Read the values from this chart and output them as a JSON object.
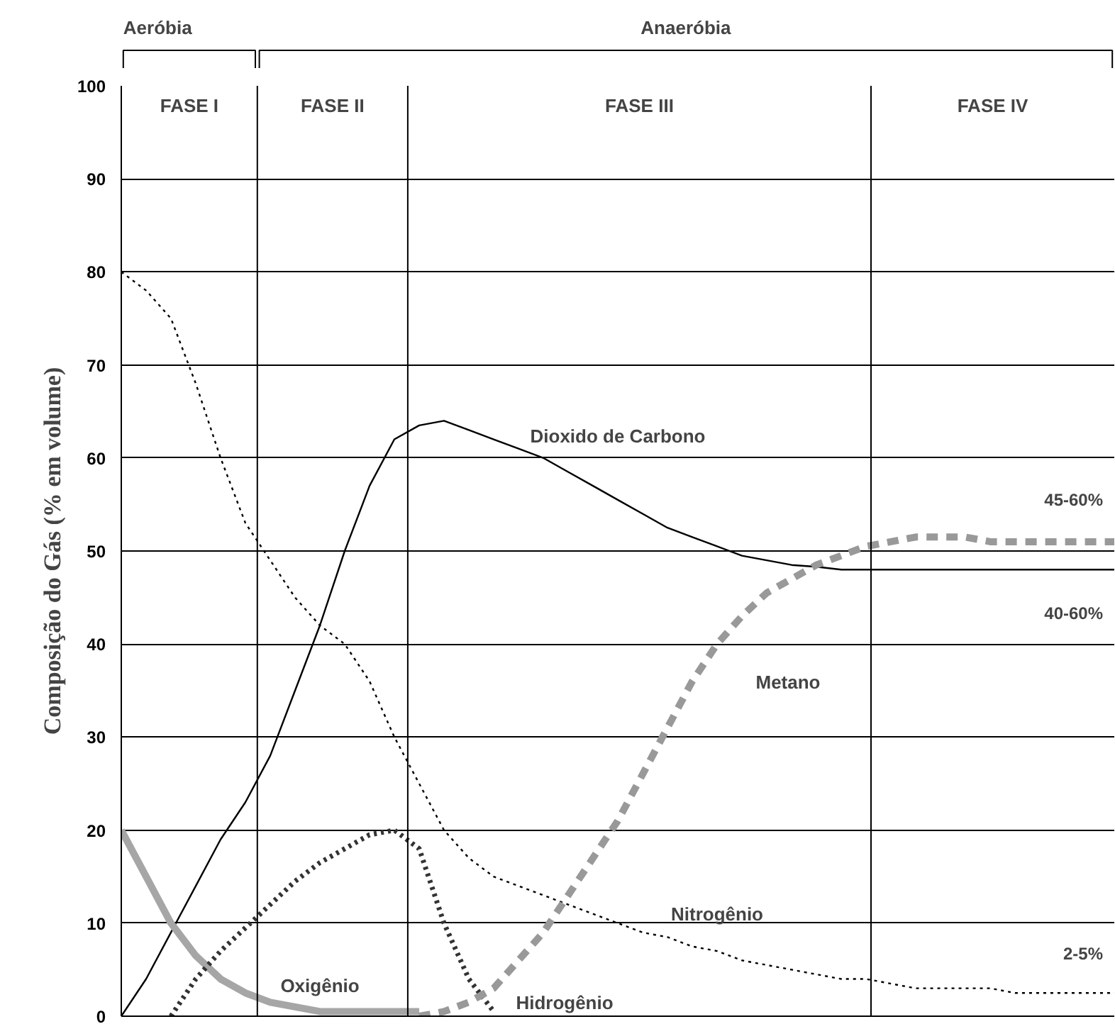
{
  "chart_data": {
    "type": "line",
    "ylabel": "Composição do Gás (% em volume)",
    "categories": [
      null,
      null,
      null,
      null,
      null,
      null,
      null,
      null,
      null,
      null,
      null,
      null,
      null,
      null,
      null,
      null,
      null,
      null,
      null,
      null,
      null,
      null,
      null,
      null,
      null,
      null,
      null,
      null,
      null,
      null,
      null,
      null,
      null,
      null,
      null,
      null,
      null,
      null,
      null,
      null,
      null
    ],
    "series": [
      {
        "name": "Nitrogênio",
        "color": "#000000",
        "line_style": "dotted",
        "values": [
          80,
          78,
          75,
          68,
          60,
          53,
          49,
          45,
          42,
          40,
          36,
          30,
          25,
          20,
          17,
          15,
          14,
          13,
          12,
          11,
          10,
          9,
          8.5,
          7.5,
          7,
          6,
          5.5,
          5,
          4.5,
          4,
          4,
          3.5,
          3,
          3,
          3,
          3,
          2.5,
          2.5,
          2.5,
          2.5,
          2.5
        ]
      },
      {
        "name": "Dioxido de Carbono",
        "color": "#000000",
        "line_style": "solid",
        "values": [
          0,
          4,
          9,
          14,
          19,
          23,
          28,
          35,
          42,
          50,
          57,
          62,
          63.5,
          64,
          63,
          62,
          61,
          60,
          58.5,
          57,
          55.5,
          54,
          52.5,
          51.5,
          50.5,
          49.5,
          49,
          48.5,
          48.3,
          48,
          48,
          48,
          48,
          48,
          48,
          48,
          48,
          48,
          48,
          48,
          48
        ]
      },
      {
        "name": "Oxigênio",
        "color": "#a6a6a6",
        "line_style": "solid",
        "values": [
          20,
          15,
          10,
          6.5,
          4,
          2.5,
          1.5,
          1,
          0.5,
          0.5,
          0.5,
          0.5,
          0.5,
          null,
          null,
          null,
          null,
          null,
          null,
          null,
          null,
          null,
          null,
          null,
          null,
          null,
          null,
          null,
          null,
          null,
          null,
          null,
          null,
          null,
          null,
          null,
          null,
          null,
          null,
          null,
          null
        ]
      },
      {
        "name": "Hidrogênio",
        "color": "#333333",
        "line_style": "dotted",
        "values": [
          null,
          null,
          0,
          4,
          7,
          9.5,
          12,
          14.5,
          16.5,
          18,
          19.5,
          20,
          18,
          10,
          4,
          0.5,
          null,
          null,
          null,
          null,
          null,
          null,
          null,
          null,
          null,
          null,
          null,
          null,
          null,
          null,
          null,
          null,
          null,
          null,
          null,
          null,
          null,
          null,
          null,
          null,
          null
        ]
      },
      {
        "name": "Metano",
        "color": "#999999",
        "line_style": "dashed",
        "values": [
          null,
          null,
          null,
          null,
          null,
          null,
          null,
          null,
          null,
          null,
          null,
          null,
          0,
          0.5,
          1.5,
          3,
          6,
          9,
          13,
          17,
          21,
          26,
          31,
          36,
          40,
          43,
          45.5,
          47,
          48.5,
          49.5,
          50.5,
          51,
          51.5,
          51.5,
          51.5,
          51,
          51,
          51,
          51,
          51,
          51
        ]
      }
    ],
    "ylim": [
      0,
      100
    ],
    "yticks": [
      0,
      10,
      20,
      30,
      40,
      50,
      60,
      70,
      80,
      90,
      100
    ],
    "grid": "y",
    "tick_labels": "y",
    "annotations": [
      "Aeróbia",
      "Anaeróbia",
      "FASE I",
      "FASE II",
      "FASE III",
      "FASE IV",
      "45-60%",
      "40-60%",
      "2-5%"
    ]
  }
}
